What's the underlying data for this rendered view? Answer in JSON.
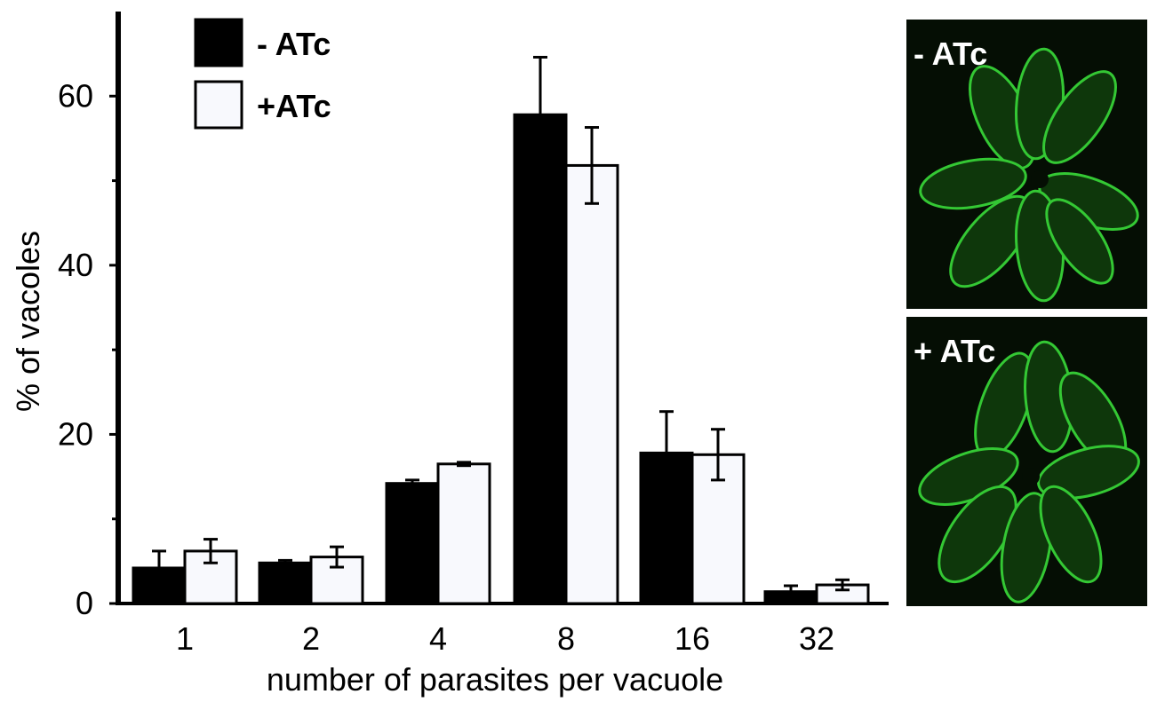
{
  "chart_data": {
    "type": "bar",
    "xlabel": "number of parasites per vacuole",
    "ylabel": "% of vacoles",
    "categories": [
      "1",
      "2",
      "4",
      "8",
      "16",
      "32"
    ],
    "ylim": [
      0,
      70
    ],
    "yticks": [
      0,
      20,
      40,
      60
    ],
    "grid": false,
    "legend_position": "top-left",
    "series": [
      {
        "name": "- ATc",
        "color": "#000000",
        "values": [
          4.2,
          4.8,
          14.2,
          57.8,
          17.8,
          1.4
        ],
        "errors": [
          2.0,
          0.3,
          0.4,
          6.8,
          4.9,
          0.7
        ]
      },
      {
        "name": "+ATc",
        "color": "#f8f9fd",
        "values": [
          6.2,
          5.5,
          16.5,
          51.8,
          17.6,
          2.2
        ],
        "errors": [
          1.4,
          1.2,
          0.2,
          4.5,
          3.0,
          0.6
        ]
      }
    ]
  },
  "micrographs": [
    {
      "label": "- ATc",
      "stain_color": "#2fd12f"
    },
    {
      "label": "+ ATc",
      "stain_color": "#2fd12f"
    }
  ]
}
